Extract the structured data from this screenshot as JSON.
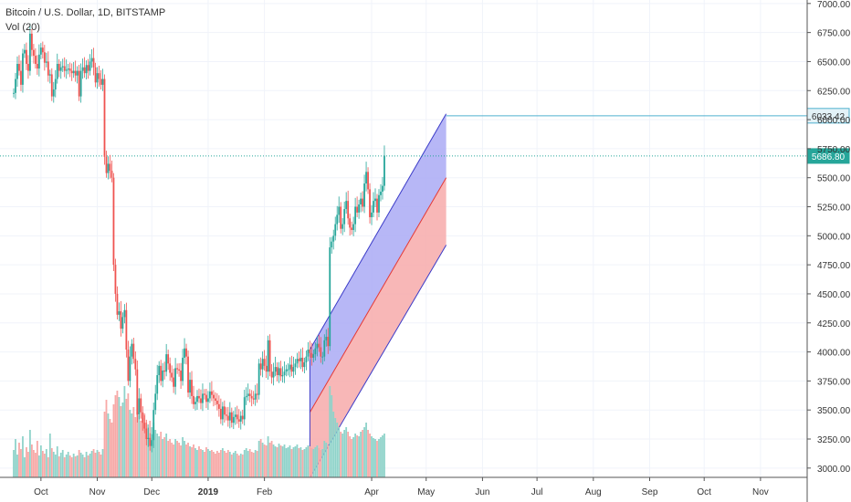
{
  "legend": {
    "symbol_line": "Bitcoin / U.S. Dollar, 1D, BITSTAMP",
    "volume_label": "Vol (20)"
  },
  "colors": {
    "up": "#26a69a",
    "down": "#ef5350",
    "volume_up": "#8fd3ca",
    "volume_down": "#f7a9a7",
    "channel_upper_fill": "#aaaaf5",
    "channel_lower_fill": "#f7aaaa",
    "channel_border": "#3b3bc8",
    "channel_mid": "#e53935",
    "price_line": "#26a69a",
    "horizontal_line": "#4fb0cf",
    "grid": "#f0f3fa",
    "axis_text": "#333333"
  },
  "chart_data": {
    "type": "candlestick",
    "title": "Bitcoin / U.S. Dollar, 1D, BITSTAMP",
    "y_axis": {
      "ticks": [
        3000,
        3250,
        3500,
        3750,
        4000,
        4250,
        4500,
        4750,
        5000,
        5250,
        5500,
        5750,
        6000,
        6250,
        6500,
        6750,
        7000
      ],
      "tick_labels": [
        "3000.00",
        "3250.00",
        "3500.00",
        "3750.00",
        "4000.00",
        "4250.00",
        "4500.00",
        "4750.00",
        "5000.00",
        "5250.00",
        "5500.00",
        "5750.00",
        "6000.00",
        "6250.00",
        "6500.00",
        "6750.00",
        "7000.00"
      ],
      "range": [
        2920,
        7030
      ]
    },
    "x_axis": {
      "labels": [
        "Oct",
        "Nov",
        "Dec",
        "2019",
        "Feb",
        "Apr",
        "May",
        "Jun",
        "Jul",
        "Aug",
        "Sep",
        "Oct",
        "Nov"
      ],
      "label_days": [
        15,
        46,
        76,
        107,
        138,
        197,
        227,
        258,
        288,
        319,
        350,
        380,
        411
      ],
      "bold_labels": [
        "2019"
      ]
    },
    "price_labels": [
      {
        "value": 6033.42,
        "text": "6033.42",
        "style": "horizontal_line"
      },
      {
        "value": 5686.8,
        "text": "5686.80",
        "style": "last_price"
      }
    ],
    "regression_channel": {
      "start_day": 163,
      "end_day": 238,
      "upper": [
        4020,
        6050
      ],
      "middle": [
        3480,
        5500
      ],
      "lower": [
        2920,
        4920
      ]
    },
    "closes": [
      6230,
      6350,
      6480,
      6420,
      6300,
      6570,
      6600,
      6480,
      6420,
      6740,
      6600,
      6550,
      6480,
      6440,
      6560,
      6620,
      6580,
      6490,
      6500,
      6380,
      6390,
      6200,
      6260,
      6350,
      6480,
      6420,
      6450,
      6460,
      6420,
      6430,
      6440,
      6420,
      6400,
      6420,
      6380,
      6420,
      6200,
      6420,
      6450,
      6400,
      6470,
      6420,
      6500,
      6530,
      6450,
      6320,
      6400,
      6350,
      6300,
      6350,
      5680,
      5540,
      5620,
      5560,
      5500,
      4750,
      4500,
      4320,
      4350,
      4200,
      4300,
      4360,
      4020,
      3750,
      3960,
      4070,
      3940,
      3850,
      3460,
      3600,
      3480,
      3390,
      3340,
      3250,
      3260,
      3190,
      3240,
      3500,
      3640,
      3800,
      3880,
      3750,
      3840,
      3830,
      3980,
      3900,
      3820,
      3780,
      3700,
      3860,
      3850,
      3840,
      3750,
      3950,
      4030,
      3960,
      3650,
      3760,
      3620,
      3550,
      3570,
      3620,
      3600,
      3560,
      3640,
      3630,
      3570,
      3600,
      3660,
      3630,
      3600,
      3580,
      3550,
      3510,
      3420,
      3530,
      3460,
      3450,
      3410,
      3480,
      3390,
      3440,
      3460,
      3420,
      3400,
      3450,
      3420,
      3610,
      3620,
      3640,
      3620,
      3600,
      3590,
      3640,
      3630,
      3900,
      3850,
      3940,
      3880,
      3830,
      4100,
      3830,
      3780,
      3830,
      3870,
      3800,
      3860,
      3790,
      3800,
      3830,
      3850,
      3850,
      3890,
      3830,
      3870,
      3900,
      3940,
      3920,
      3950,
      3870,
      3910,
      3960,
      4020,
      3990,
      3950,
      3980,
      4030,
      4070,
      4040,
      3960,
      3960,
      4100,
      4130,
      4050,
      4900,
      4950,
      5000,
      5100,
      5180,
      5250,
      5060,
      5100,
      5230,
      5300,
      5150,
      5070,
      5050,
      5100,
      5250,
      5200,
      5270,
      5320,
      5250,
      5450,
      5550,
      5400,
      5160,
      5200,
      5300,
      5320,
      5200,
      5350,
      5380,
      5430,
      5690
    ],
    "volumes": [
      0.3,
      0.42,
      0.25,
      0.38,
      0.31,
      0.45,
      0.22,
      0.33,
      0.28,
      0.52,
      0.36,
      0.3,
      0.27,
      0.4,
      0.24,
      0.35,
      0.29,
      0.26,
      0.31,
      0.22,
      0.48,
      0.32,
      0.28,
      0.25,
      0.34,
      0.23,
      0.27,
      0.3,
      0.22,
      0.25,
      0.28,
      0.24,
      0.22,
      0.26,
      0.23,
      0.24,
      0.3,
      0.27,
      0.25,
      0.22,
      0.28,
      0.24,
      0.26,
      0.29,
      0.31,
      0.27,
      0.3,
      0.28,
      0.25,
      0.31,
      0.72,
      0.85,
      0.7,
      0.64,
      0.6,
      0.8,
      0.9,
      0.95,
      0.88,
      0.78,
      0.82,
      1.0,
      0.86,
      0.92,
      0.74,
      0.7,
      0.77,
      0.66,
      0.72,
      0.68,
      0.62,
      0.65,
      0.7,
      0.6,
      0.58,
      0.62,
      0.55,
      0.6,
      0.52,
      0.48,
      0.45,
      0.5,
      0.42,
      0.44,
      0.48,
      0.4,
      0.42,
      0.38,
      0.36,
      0.42,
      0.4,
      0.38,
      0.35,
      0.44,
      0.4,
      0.36,
      0.38,
      0.34,
      0.33,
      0.36,
      0.32,
      0.3,
      0.34,
      0.31,
      0.3,
      0.28,
      0.33,
      0.31,
      0.29,
      0.3,
      0.28,
      0.26,
      0.29,
      0.27,
      0.3,
      0.32,
      0.29,
      0.27,
      0.3,
      0.28,
      0.25,
      0.27,
      0.29,
      0.26,
      0.24,
      0.26,
      0.25,
      0.3,
      0.32,
      0.29,
      0.31,
      0.28,
      0.27,
      0.3,
      0.29,
      0.4,
      0.42,
      0.38,
      0.36,
      0.35,
      0.45,
      0.38,
      0.4,
      0.36,
      0.34,
      0.33,
      0.37,
      0.35,
      0.34,
      0.36,
      0.32,
      0.33,
      0.35,
      0.31,
      0.33,
      0.34,
      0.36,
      0.32,
      0.33,
      0.3,
      0.31,
      0.33,
      0.35,
      0.34,
      0.32,
      0.31,
      0.33,
      0.35,
      0.32,
      0.3,
      0.31,
      0.4,
      0.38,
      0.35,
      1.0,
      0.9,
      0.72,
      0.65,
      0.6,
      0.55,
      0.5,
      0.48,
      0.52,
      0.55,
      0.5,
      0.45,
      0.42,
      0.44,
      0.48,
      0.46,
      0.45,
      0.5,
      0.52,
      0.55,
      0.6,
      0.52,
      0.48,
      0.45,
      0.43,
      0.42,
      0.4,
      0.42,
      0.44,
      0.46,
      0.48
    ]
  }
}
